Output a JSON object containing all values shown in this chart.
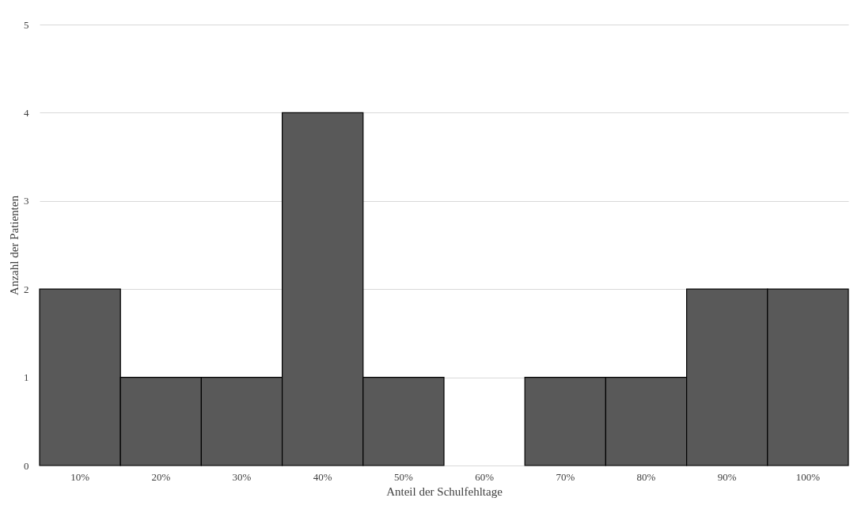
{
  "chart_data": {
    "type": "bar",
    "xlabel": "Anteil der Schulfehltage",
    "ylabel": "Anzahl der Patienten",
    "categories": [
      "10%",
      "20%",
      "30%",
      "40%",
      "50%",
      "60%",
      "70%",
      "80%",
      "90%",
      "100%"
    ],
    "values": [
      2,
      1,
      1,
      4,
      1,
      0,
      1,
      1,
      2,
      2
    ],
    "color": "#595959",
    "ylim": [
      0,
      5
    ],
    "yticks": [
      0,
      1,
      2,
      3,
      4,
      5
    ],
    "grid": "y"
  }
}
